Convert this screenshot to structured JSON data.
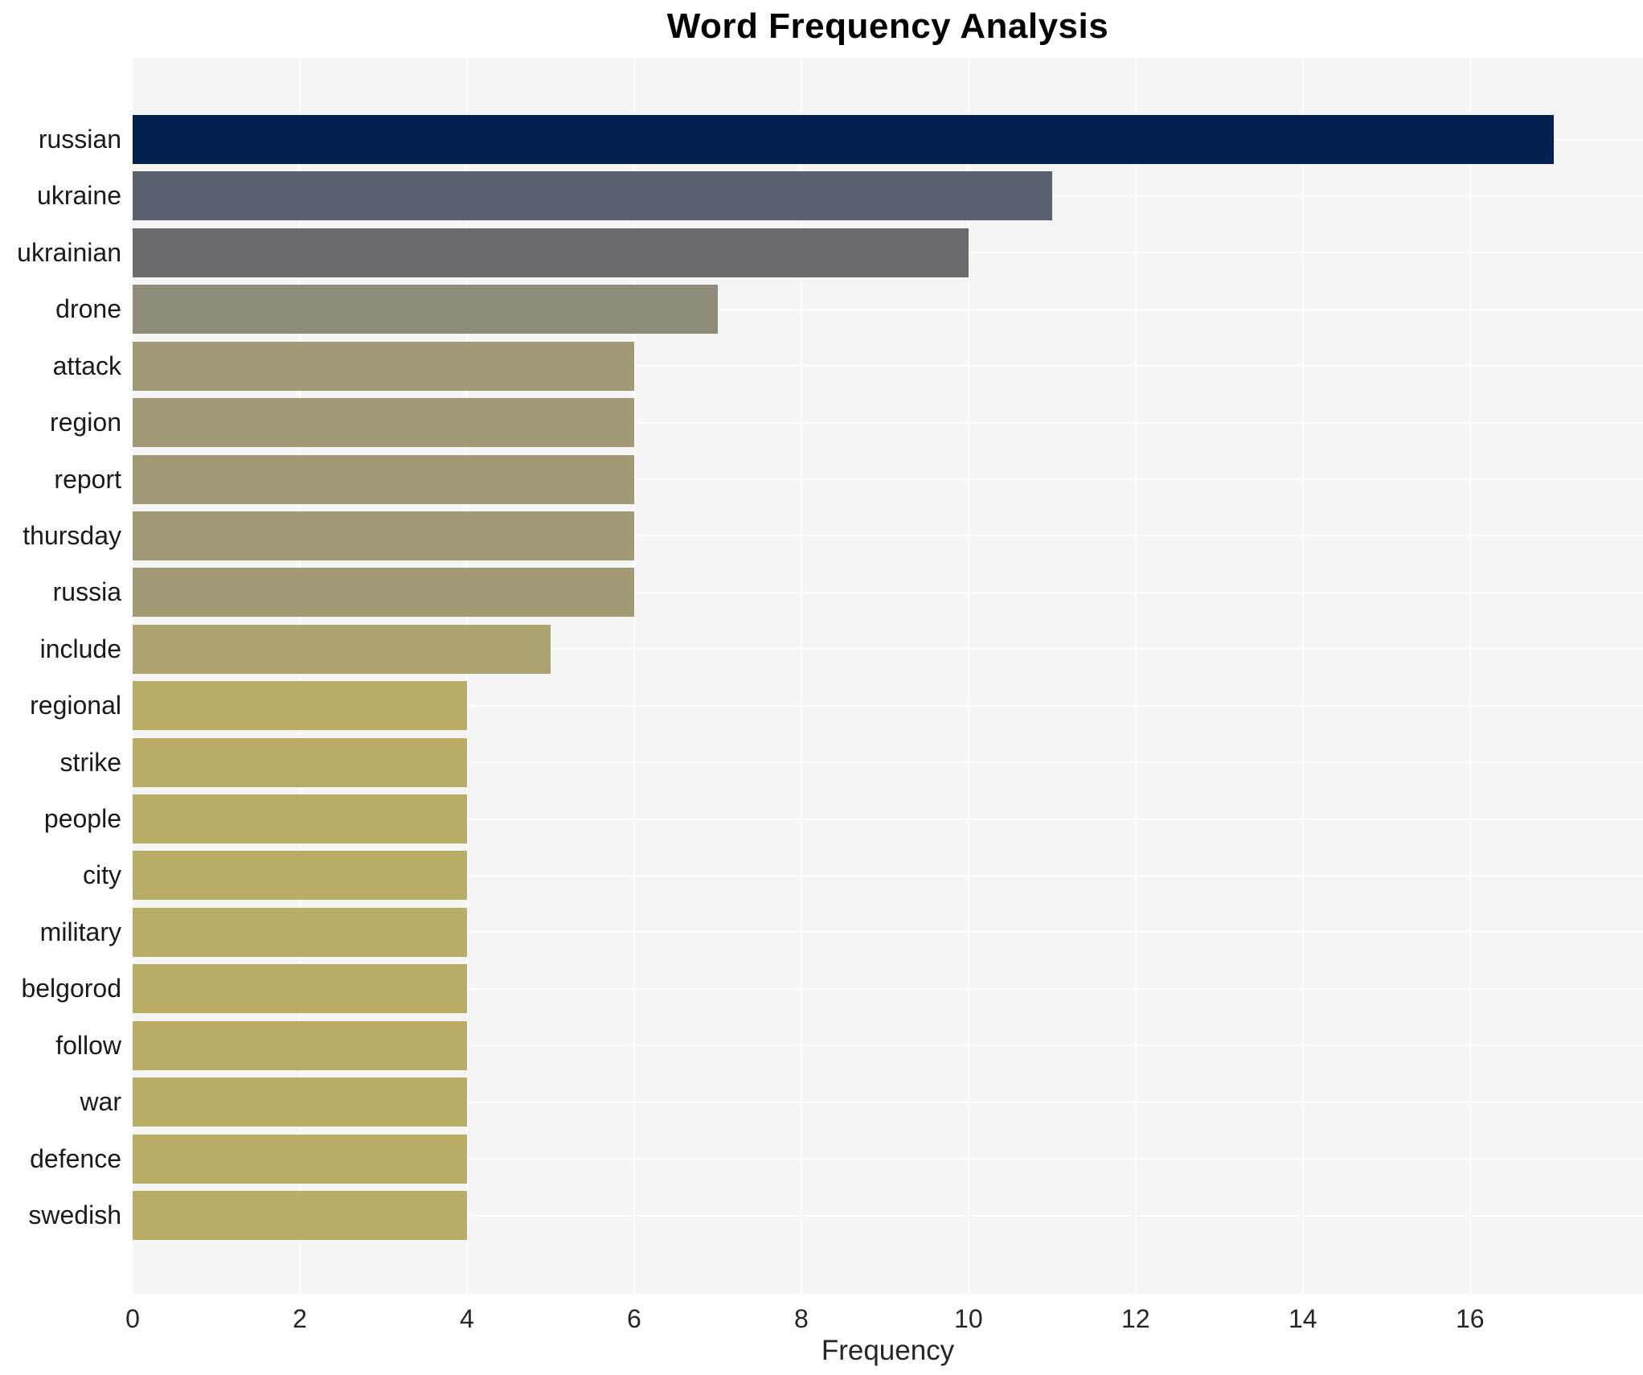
{
  "chart_data": {
    "type": "bar",
    "orientation": "horizontal",
    "title": "Word Frequency Analysis",
    "xlabel": "Frequency",
    "ylabel": "",
    "categories": [
      "russian",
      "ukraine",
      "ukrainian",
      "drone",
      "attack",
      "region",
      "report",
      "thursday",
      "russia",
      "include",
      "regional",
      "strike",
      "people",
      "city",
      "military",
      "belgorod",
      "follow",
      "war",
      "defence",
      "swedish"
    ],
    "values": [
      17,
      11,
      10,
      7,
      6,
      6,
      6,
      6,
      6,
      5,
      4,
      4,
      4,
      4,
      4,
      4,
      4,
      4,
      4,
      4
    ],
    "bar_colors": [
      "#012150",
      "#5a616e",
      "#6b6b6e",
      "#918b79",
      "#a29a75",
      "#a29a75",
      "#a29a75",
      "#a29a75",
      "#a29a75",
      "#aca36e",
      "#b9ad66",
      "#b9ad66",
      "#b9ad66",
      "#b9ad66",
      "#b9ad66",
      "#b9ad66",
      "#b9ad66",
      "#b9ad66",
      "#b9ad66",
      "#b9ad66"
    ],
    "x_ticks": [
      0,
      2,
      4,
      6,
      8,
      10,
      12,
      14,
      16
    ],
    "xlim": [
      0,
      18.07
    ],
    "grid": true,
    "legend": "none",
    "plot_background": "#f5f5f6",
    "grid_color": "#ffffff",
    "title_color": "#000000",
    "label_color": "#1a1a1a",
    "tick_color": "#262626"
  }
}
